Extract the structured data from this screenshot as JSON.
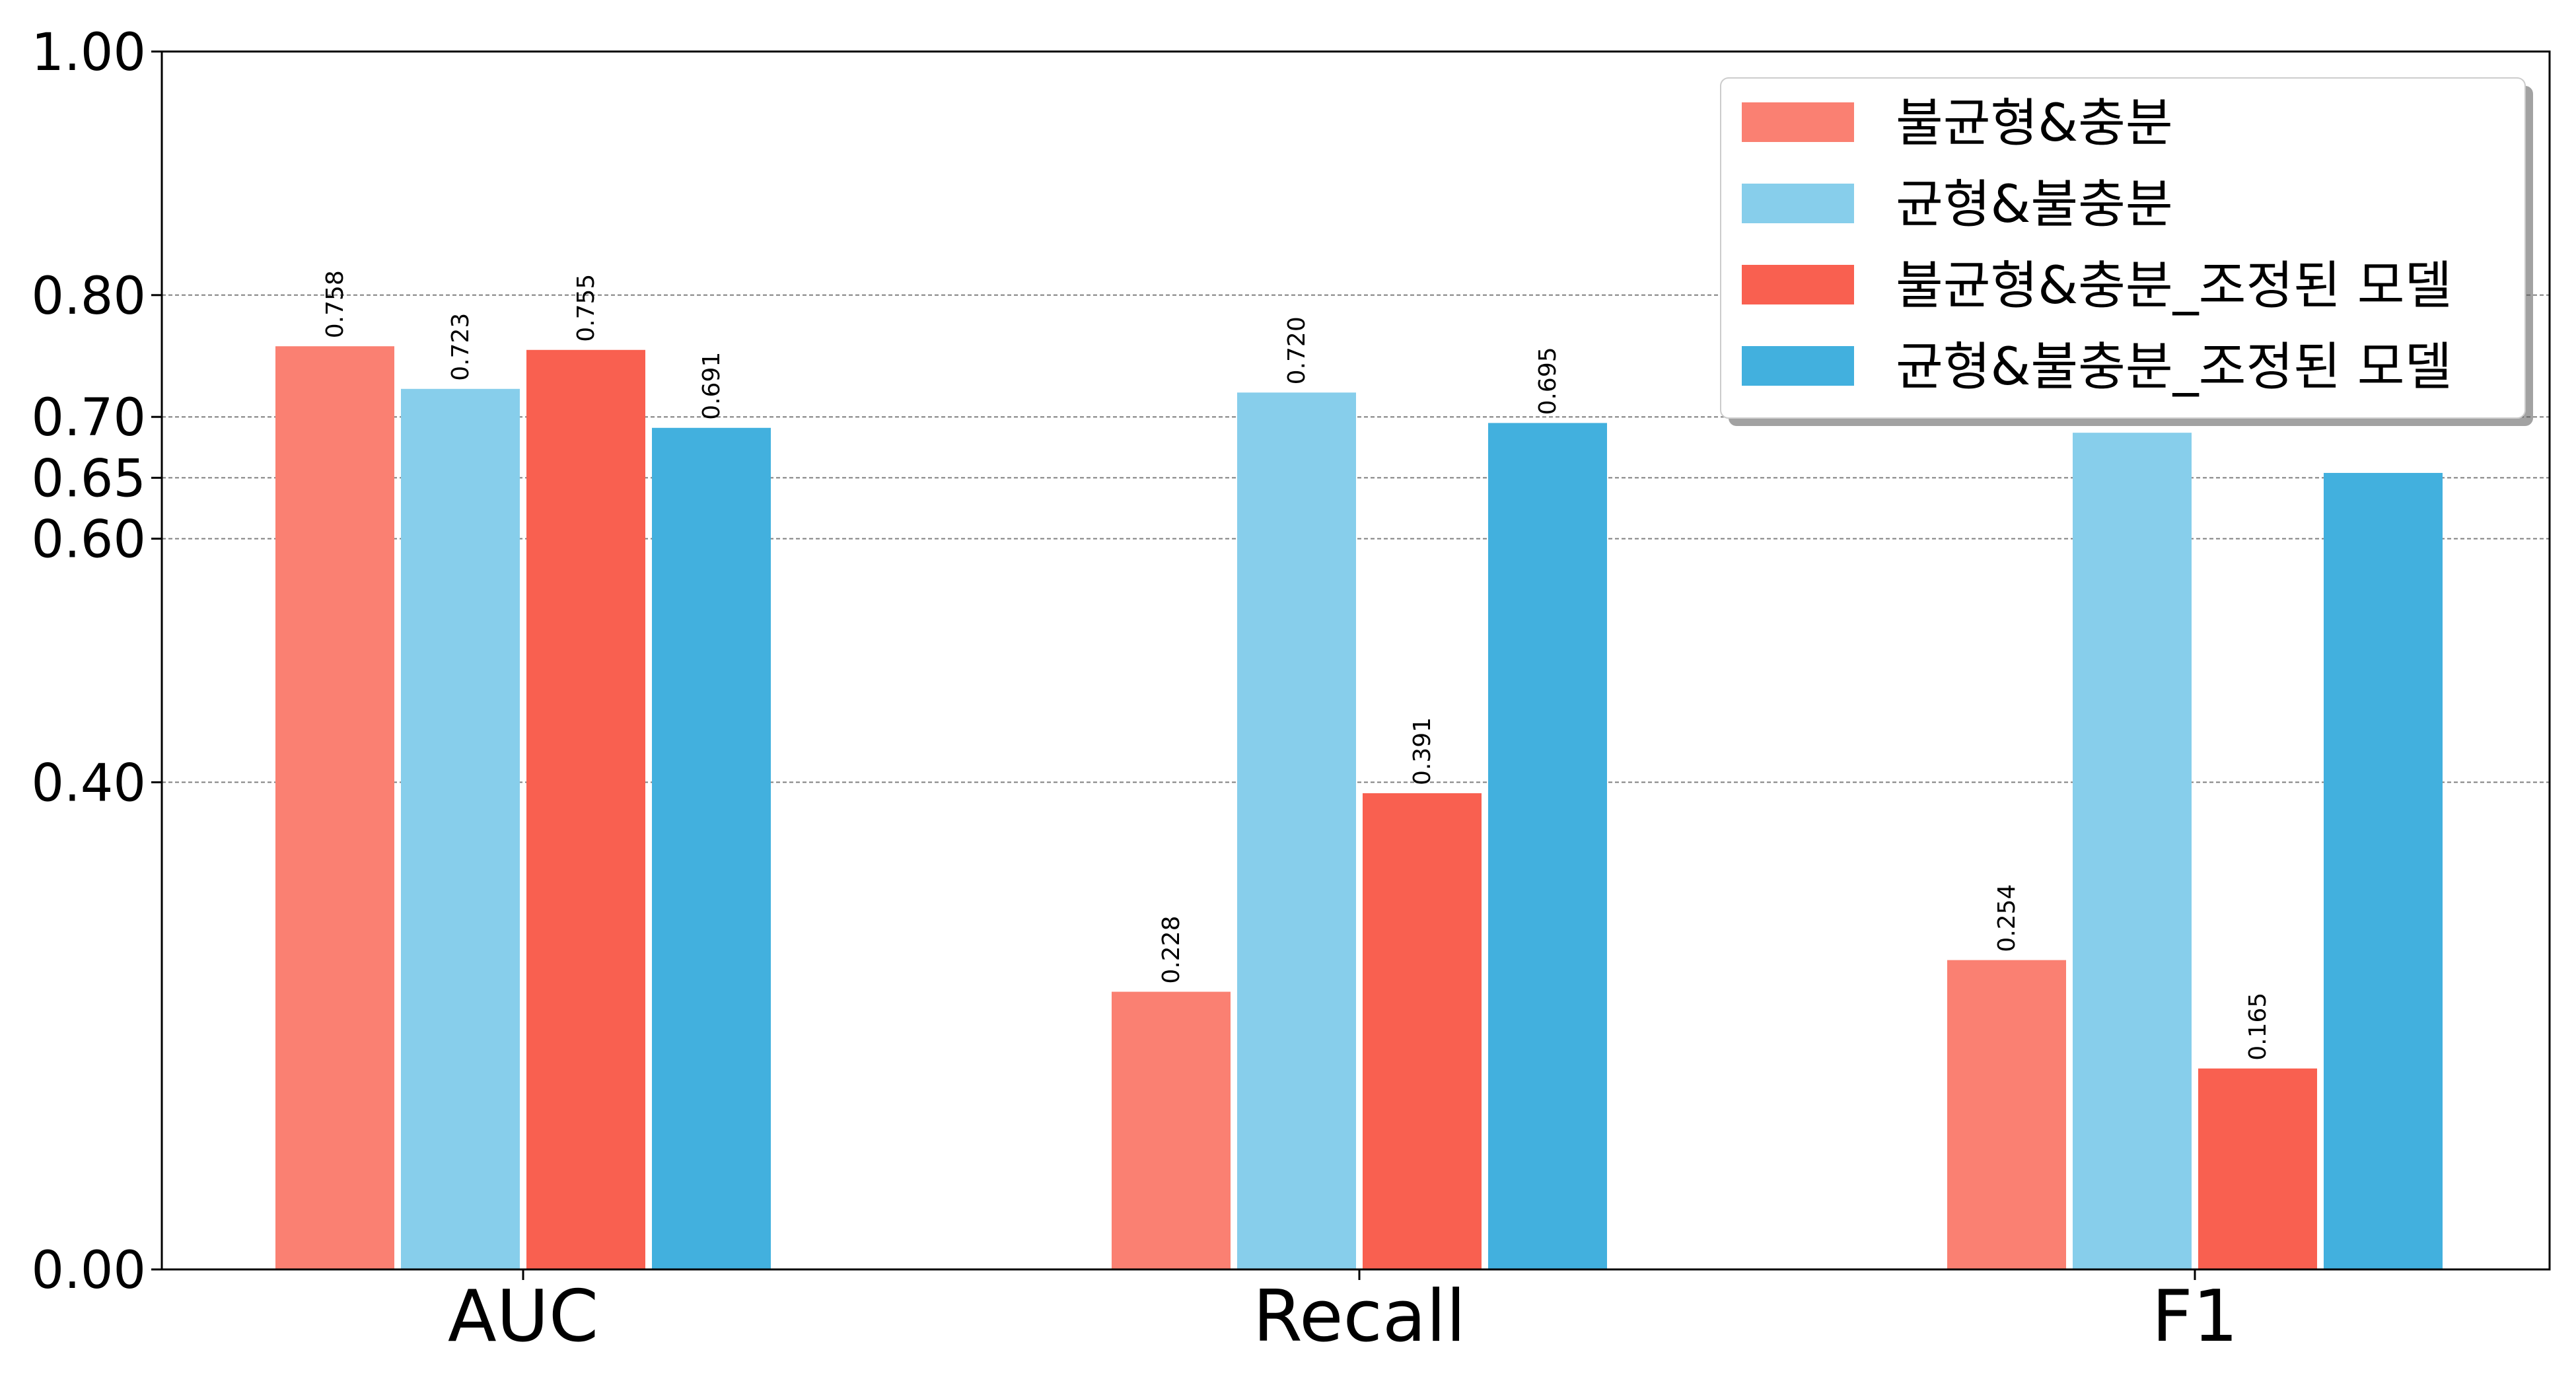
{
  "chart_data": {
    "type": "bar",
    "categories": [
      "AUC",
      "Recall",
      "F1"
    ],
    "series": [
      {
        "name": "불균형&충분",
        "values": [
          0.758,
          0.228,
          0.254
        ],
        "labels": [
          "0.758",
          "0.228",
          "0.254"
        ],
        "color": "#FA8072"
      },
      {
        "name": "균형&불충분",
        "values": [
          0.723,
          0.72,
          0.687
        ],
        "labels": [
          "0.723",
          "0.720",
          ""
        ],
        "color": "#87CEEB"
      },
      {
        "name": "불균형&충분_조정된 모델",
        "values": [
          0.755,
          0.391,
          0.165
        ],
        "labels": [
          "0.755",
          "0.391",
          "0.165"
        ],
        "color": "#F96050"
      },
      {
        "name": "균형&불충분_조정된 모델",
        "values": [
          0.691,
          0.695,
          0.654
        ],
        "labels": [
          "0.691",
          "0.695",
          ""
        ],
        "color": "#42B0DE"
      }
    ],
    "yticks": [
      "0.00",
      "0.40",
      "0.60",
      "0.65",
      "0.70",
      "0.80",
      "1.00"
    ],
    "ytick_values": [
      0.0,
      0.4,
      0.6,
      0.65,
      0.7,
      0.8,
      1.0
    ],
    "gridlines": [
      0.4,
      0.6,
      0.65,
      0.7,
      0.8
    ],
    "ylim": [
      0,
      1
    ],
    "grid": "horizontal dashed at selected ticks",
    "legend_position": "top-right"
  }
}
